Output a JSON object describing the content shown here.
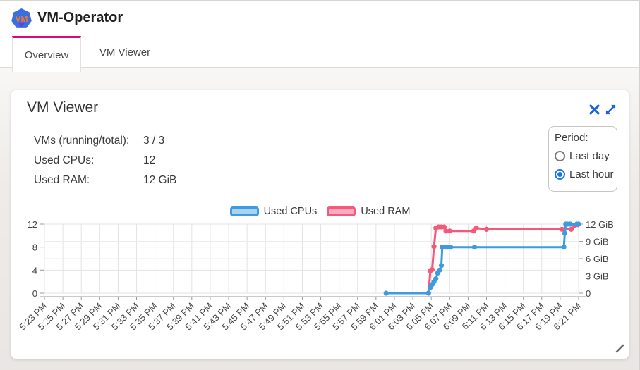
{
  "header": {
    "app_title": "VM-Operator",
    "logo_text": "VM",
    "tabs": [
      {
        "label": "Overview",
        "active": true
      },
      {
        "label": "VM Viewer",
        "active": false
      }
    ],
    "active_tab_color": "#d60b76"
  },
  "card": {
    "title": "VM Viewer",
    "actions": {
      "close_icon": "close-x",
      "maximize_icon": "expand-diagonal",
      "icon_color": "#1b64d2"
    },
    "stats": [
      {
        "label": "VMs (running/total):",
        "value": "3 / 3"
      },
      {
        "label": "Used CPUs:",
        "value": "12"
      },
      {
        "label": "Used RAM:",
        "value": "12 GiB"
      }
    ],
    "period": {
      "label": "Period:",
      "options": [
        {
          "label": "Last day",
          "selected": false
        },
        {
          "label": "Last hour",
          "selected": true
        }
      ],
      "selected_color": "#1a73e8"
    }
  },
  "chart_data": {
    "type": "line",
    "title": "",
    "grid": true,
    "legend_position": "top-center",
    "x_axis": {
      "labels": [
        "5:23 PM",
        "5:25 PM",
        "5:27 PM",
        "5:29 PM",
        "5:31 PM",
        "5:33 PM",
        "5:35 PM",
        "5:37 PM",
        "5:39 PM",
        "5:41 PM",
        "5:43 PM",
        "5:45 PM",
        "5:47 PM",
        "5:49 PM",
        "5:51 PM",
        "5:53 PM",
        "5:55 PM",
        "5:57 PM",
        "5:59 PM",
        "6:01 PM",
        "6:03 PM",
        "6:05 PM",
        "6:07 PM",
        "6:09 PM",
        "6:11 PM",
        "6:13 PM",
        "6:15 PM",
        "6:17 PM",
        "6:19 PM",
        "6:21 PM"
      ],
      "minutes_per_tick": 2,
      "total_minutes": 58
    },
    "left_axis": {
      "unit": "CPUs",
      "ticks": [
        0,
        4,
        8,
        12
      ],
      "range": [
        0,
        12
      ]
    },
    "right_axis": {
      "unit": "GiB",
      "ticks": [
        {
          "v": 0,
          "label": "0"
        },
        {
          "v": 3,
          "label": "3 GiB"
        },
        {
          "v": 6,
          "label": "6 GiB"
        },
        {
          "v": 9,
          "label": "9 GiB"
        },
        {
          "v": 12,
          "label": "12 GiB"
        }
      ],
      "range": [
        0,
        12
      ]
    },
    "series": [
      {
        "name": "Used RAM",
        "axis": "right",
        "color": "#f4587a",
        "fill": "#f9abc0",
        "points": [
          [
            41.7,
            0
          ],
          [
            41.9,
            3.9
          ],
          [
            42.1,
            4.1
          ],
          [
            42.3,
            8.1
          ],
          [
            42.5,
            11.3
          ],
          [
            42.8,
            11.5
          ],
          [
            43.1,
            11.5
          ],
          [
            43.4,
            11.5
          ],
          [
            43.6,
            10.8
          ],
          [
            44.0,
            10.8
          ],
          [
            46.6,
            10.8
          ],
          [
            46.9,
            11.3
          ],
          [
            48.0,
            11.1
          ],
          [
            56.2,
            11.1
          ],
          [
            57.2,
            11.1
          ],
          [
            57.6,
            11.8
          ],
          [
            57.9,
            11.9
          ]
        ]
      },
      {
        "name": "Used CPUs",
        "axis": "left",
        "color": "#3e9bdf",
        "fill": "#a8d4f2",
        "points": [
          [
            37.1,
            0
          ],
          [
            41.7,
            0
          ],
          [
            41.9,
            1
          ],
          [
            42.1,
            1.5
          ],
          [
            42.3,
            2
          ],
          [
            42.5,
            2.5
          ],
          [
            42.7,
            3.5
          ],
          [
            42.9,
            4
          ],
          [
            43.1,
            4.8
          ],
          [
            43.2,
            8
          ],
          [
            43.5,
            8
          ],
          [
            43.8,
            8
          ],
          [
            44.1,
            8
          ],
          [
            46.7,
            8
          ],
          [
            56.4,
            8
          ],
          [
            56.5,
            10.4
          ],
          [
            56.6,
            12
          ],
          [
            56.8,
            12
          ],
          [
            57.1,
            12
          ],
          [
            57.8,
            12
          ],
          [
            58,
            12
          ]
        ]
      }
    ],
    "legend_order": [
      1,
      0
    ]
  }
}
